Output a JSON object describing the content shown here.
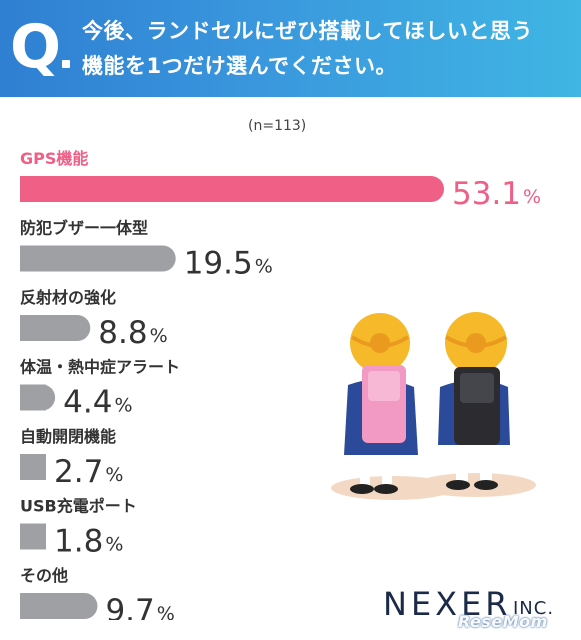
{
  "question": {
    "mark": "Q",
    "line1": "今後、ランドセルにぜひ搭載してほしいと思う",
    "line2": "機能を1つだけ選んでください。"
  },
  "sample_size": "(n=113)",
  "colors": {
    "header": "#3a97dd",
    "highlight_bar": "#ef5f86",
    "bar": "#9fa0a4"
  },
  "chart_data": {
    "type": "bar",
    "orientation": "horizontal",
    "unit": "%",
    "xlim": [
      0,
      53.1
    ],
    "categories": [
      "GPS機能",
      "防犯ブザー一体型",
      "反射材の強化",
      "体温・熱中症アラート",
      "自動開閉機能",
      "USB充電ポート",
      "その他"
    ],
    "values": [
      53.1,
      19.5,
      8.8,
      4.4,
      2.7,
      1.8,
      9.7
    ],
    "value_labels": [
      "53.1",
      "19.5",
      "8.8",
      "4.4",
      "2.7",
      "1.8",
      "9.7"
    ],
    "highlight_index": 0
  },
  "brand": {
    "name": "NEXER",
    "suffix": "INC.",
    "watermark": "ReseMom"
  }
}
